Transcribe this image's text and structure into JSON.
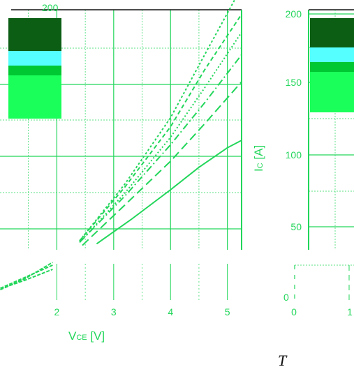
{
  "chart_data": [
    {
      "type": "line",
      "xlabel_main": "V",
      "xlabel_sub": "CE",
      "xlabel_unit": " [V]",
      "x_ticks": [
        "2",
        "3",
        "4",
        "5"
      ],
      "y_ticks": [
        "200"
      ],
      "xlim": [
        1,
        5.25
      ],
      "grid": true,
      "swatch_colors": [
        "#0b5e14",
        "#55ffff",
        "#00c832",
        "#1aff5a"
      ],
      "series": [
        {
          "style": "solid",
          "x": [
            2.7,
            3.3,
            4.0,
            4.5,
            5.0,
            5.25
          ],
          "y": [
            44,
            60,
            80,
            95,
            108,
            113
          ]
        },
        {
          "style": "dashed",
          "x": [
            2.45,
            3.2,
            4.0,
            4.6,
            5.25
          ],
          "y": [
            43,
            70,
            99,
            124,
            152
          ]
        },
        {
          "style": "dash-dot",
          "x": [
            2.4,
            3.2,
            4.0,
            4.6,
            5.25
          ],
          "y": [
            45,
            76,
            110,
            138,
            170
          ]
        },
        {
          "style": "dotted",
          "x": [
            2.4,
            3.2,
            4.0,
            4.6,
            5.25
          ],
          "y": [
            45,
            78,
            115,
            148,
            185
          ]
        },
        {
          "style": "long-dash",
          "x": [
            2.4,
            3.2,
            4.0,
            4.6,
            5.25
          ],
          "y": [
            46,
            82,
            122,
            160,
            197
          ]
        },
        {
          "style": "short-dash",
          "x": [
            2.4,
            3.2,
            4.0,
            4.6,
            5.25
          ],
          "y": [
            46,
            84,
            128,
            170,
            215
          ]
        }
      ],
      "lower_fragment": [
        {
          "x": [
            1.0,
            1.5,
            2.0
          ],
          "y": [
            2,
            9,
            17
          ]
        },
        {
          "x": [
            1.0,
            1.5,
            2.0
          ],
          "y": [
            2,
            11,
            20
          ]
        },
        {
          "x": [
            1.0,
            1.5,
            2.0
          ],
          "y": [
            1,
            10,
            22
          ]
        }
      ]
    },
    {
      "type": "line",
      "ylabel_main": "I",
      "ylabel_sub": "C",
      "ylabel_unit": " [A]",
      "y_ticks": [
        "200",
        "150",
        "100",
        "50"
      ],
      "x_ticks": [
        "0",
        "1"
      ],
      "lower_tick": "0",
      "ylim": [
        0,
        200
      ],
      "grid": true,
      "swatch_colors": [
        "#0b5e14",
        "#55ffff",
        "#00c832",
        "#1aff5a"
      ]
    }
  ],
  "footer": {
    "letter": "T"
  }
}
